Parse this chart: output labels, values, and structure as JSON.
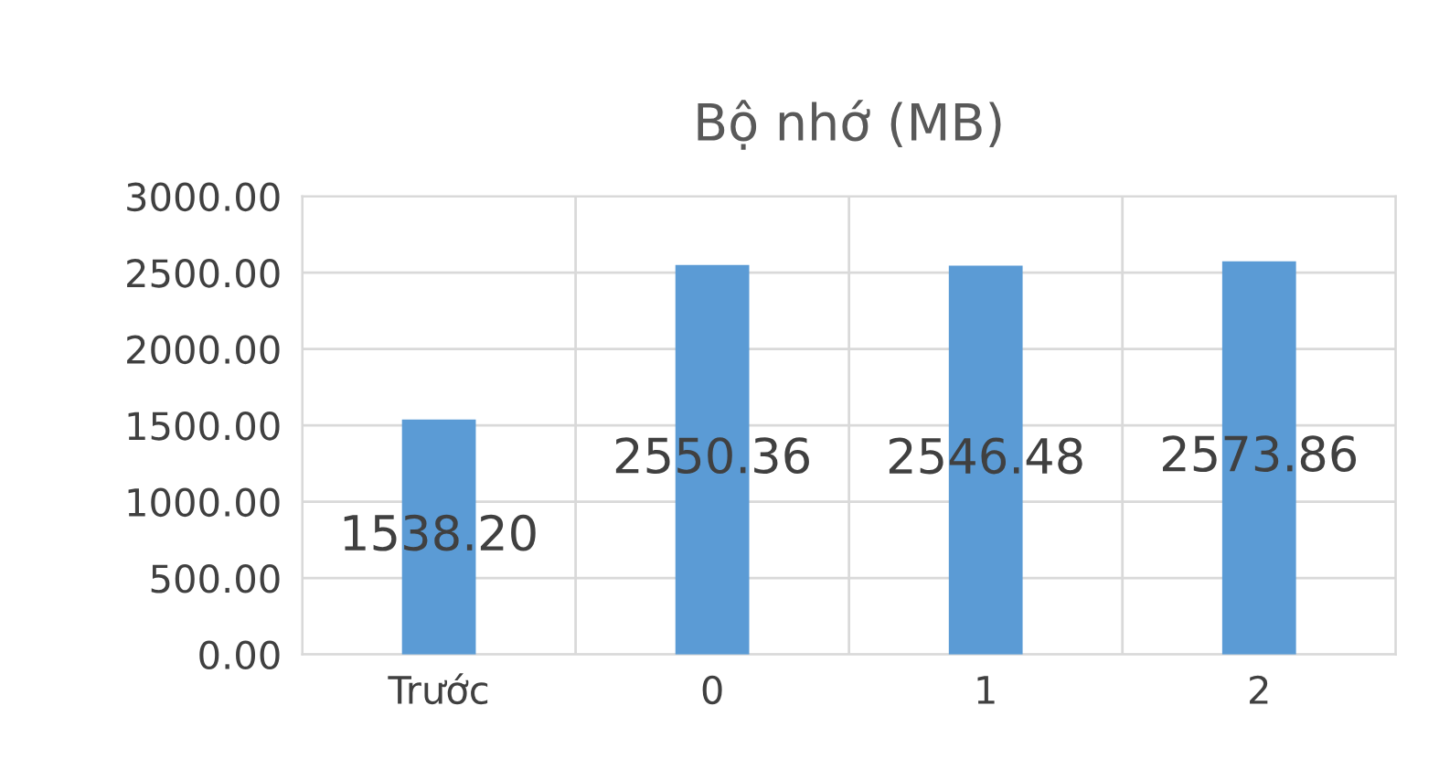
{
  "chart_data": {
    "type": "bar",
    "title": "Bộ nhớ (MB)",
    "categories": [
      "Trước",
      "0",
      "1",
      "2"
    ],
    "values": [
      1538.2,
      2550.36,
      2546.48,
      2573.86
    ],
    "color": "#5b9bd5",
    "ylim": [
      0,
      3000
    ],
    "yticks": [
      {
        "value": 0,
        "label": "0.00"
      },
      {
        "value": 500,
        "label": "500.00"
      },
      {
        "value": 1000,
        "label": "1000.00"
      },
      {
        "value": 1500,
        "label": "1500.00"
      },
      {
        "value": 2000,
        "label": "2000.00"
      },
      {
        "value": 2500,
        "label": "2500.00"
      },
      {
        "value": 3000,
        "label": "3000.00"
      }
    ],
    "grid": true,
    "value_labels": [
      "1538.20",
      "2550.36",
      "2546.48",
      "2573.86"
    ]
  }
}
